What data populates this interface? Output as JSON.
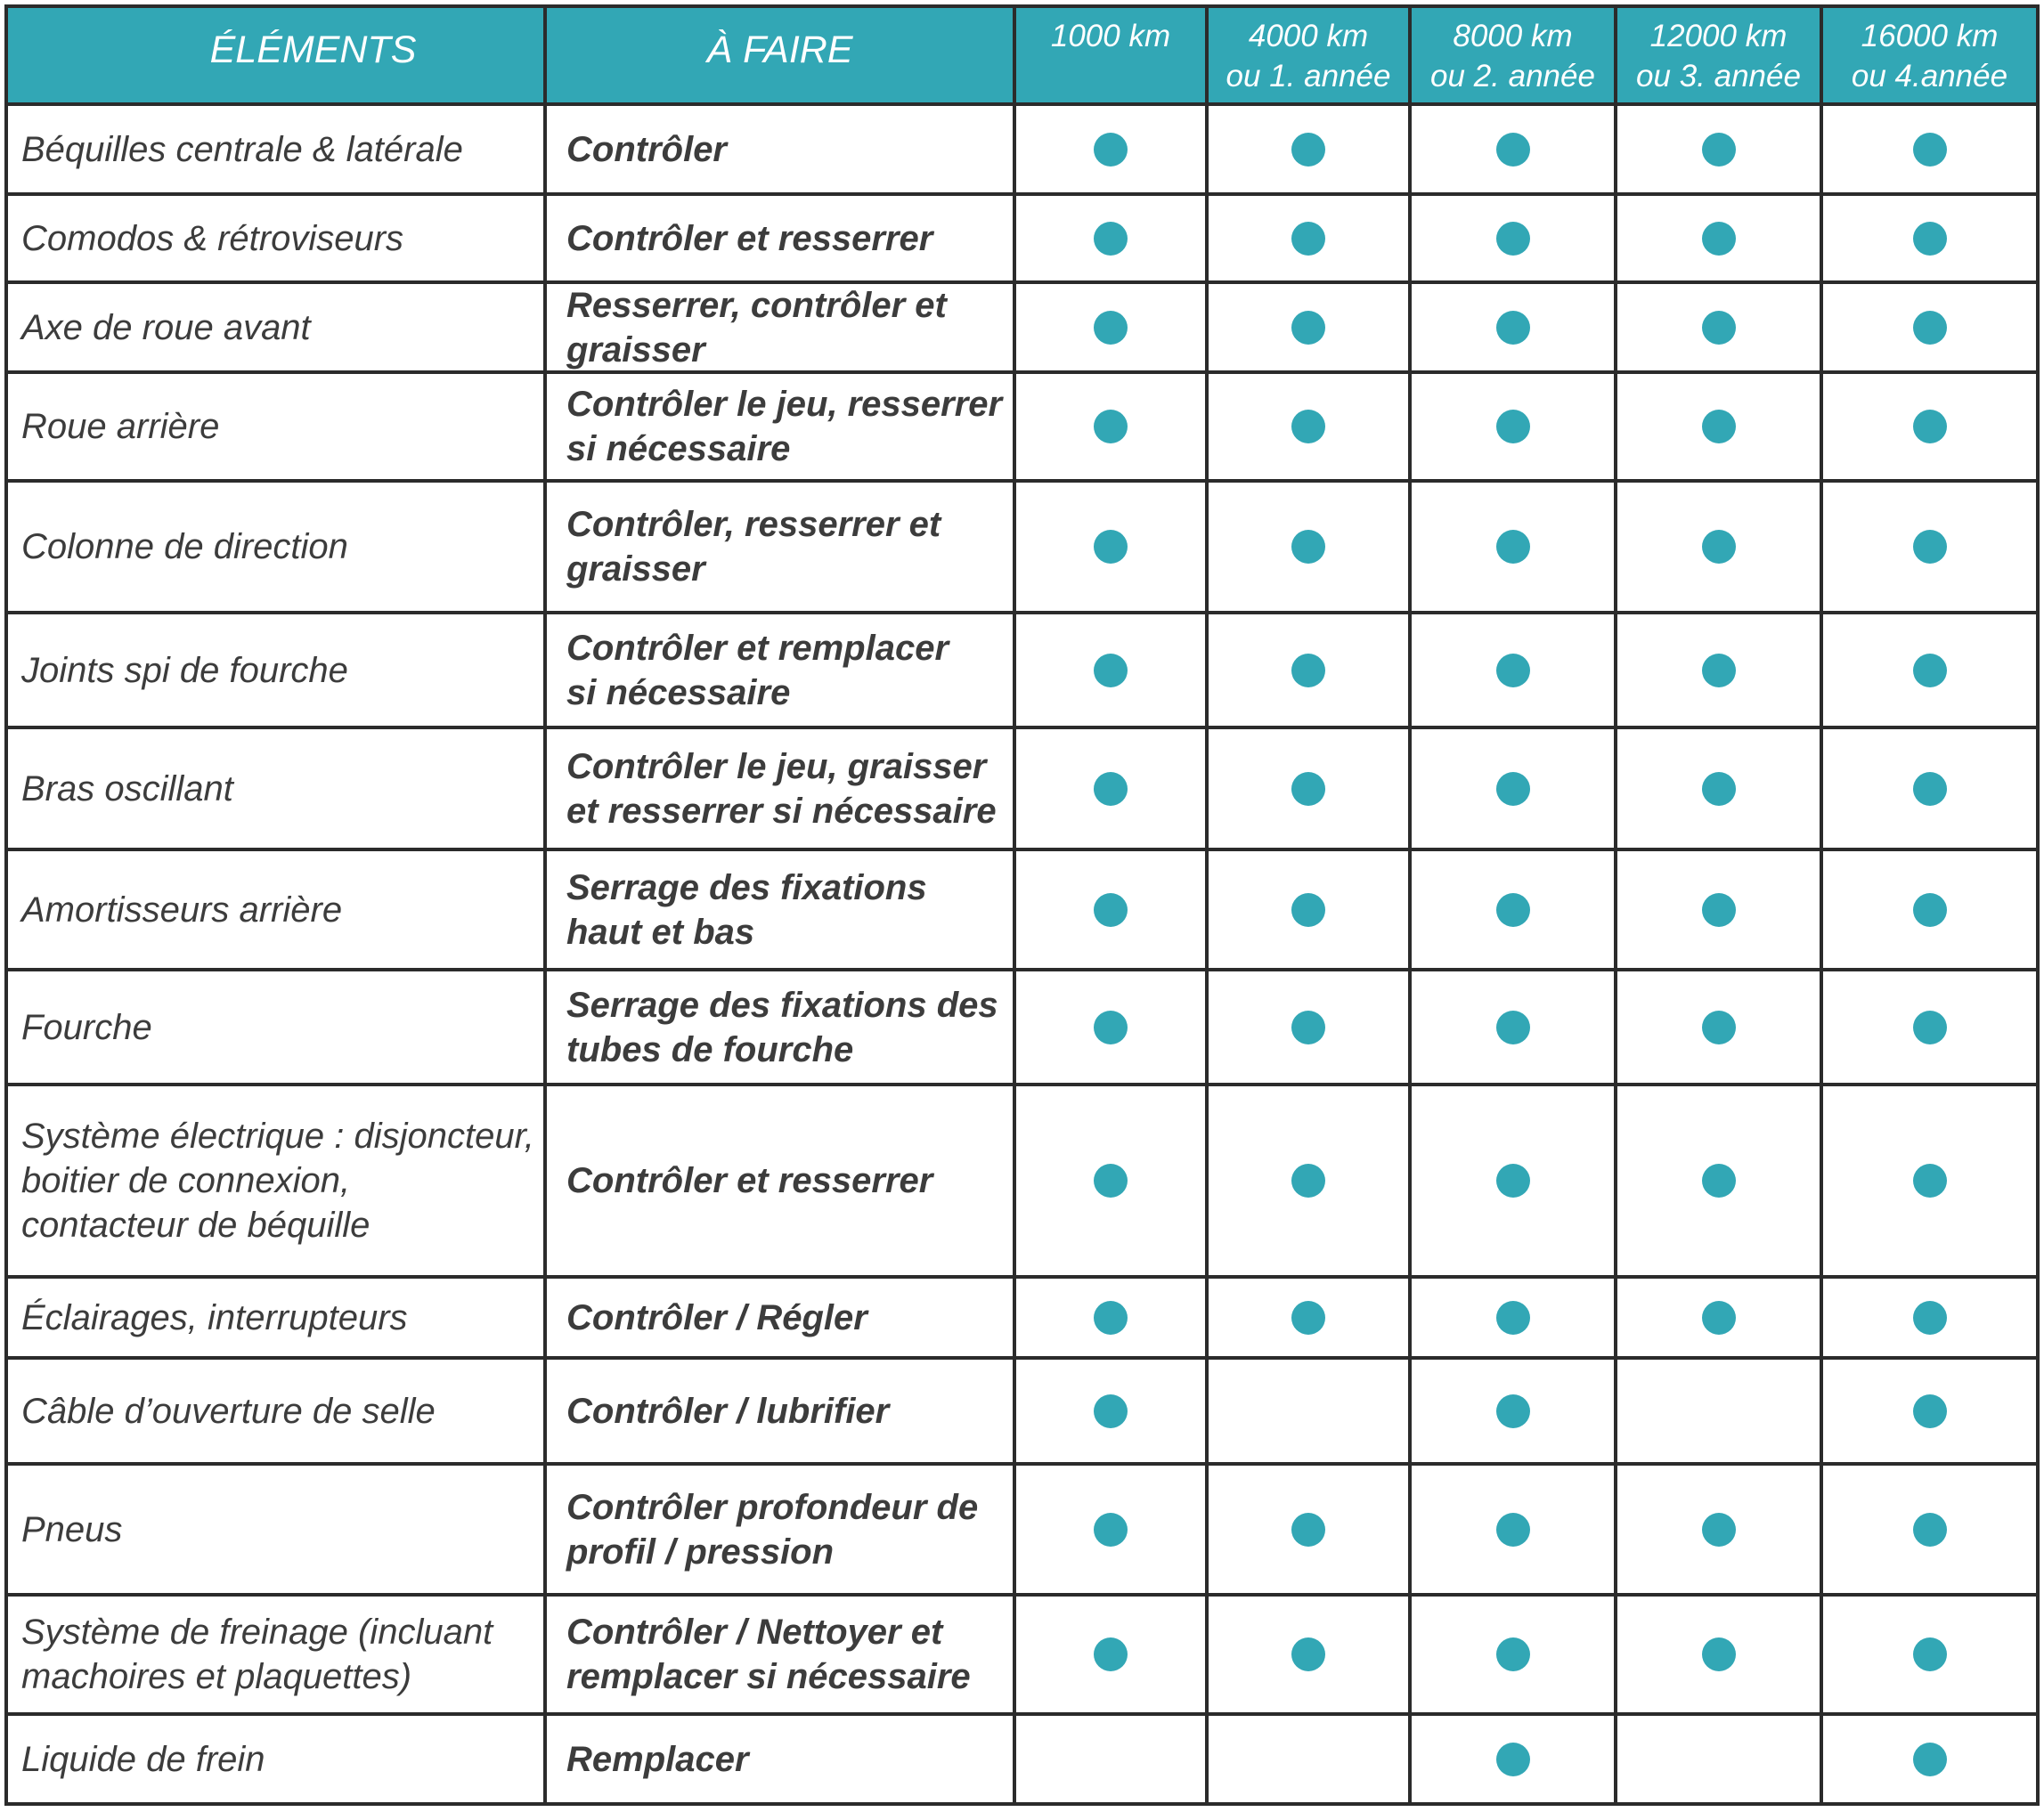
{
  "colors": {
    "teal": "#32a7b5",
    "border": "#2b2b2b",
    "body_text": "#3c3c3c",
    "header_text": "#ffffff",
    "background": "#ffffff"
  },
  "header": {
    "elements_label": "ÉLÉMENTS",
    "todo_label": "À FAIRE",
    "intervals": [
      {
        "km": "1000 km",
        "year": ""
      },
      {
        "km": "4000 km",
        "year": "ou 1. année"
      },
      {
        "km": "8000 km",
        "year": "ou 2. année"
      },
      {
        "km": "12000 km",
        "year": "ou 3. année"
      },
      {
        "km": "16000 km",
        "year": "ou 4.année"
      }
    ]
  },
  "rows": [
    {
      "element": "Béquilles centrale & latérale",
      "todo": "Contrôler",
      "marks": [
        1,
        1,
        1,
        1,
        1
      ]
    },
    {
      "element": "Comodos & rétroviseurs",
      "todo": "Contrôler et resserrer",
      "marks": [
        1,
        1,
        1,
        1,
        1
      ]
    },
    {
      "element": "Axe de roue avant",
      "todo": "Resserrer, contrôler et\ngraisser",
      "marks": [
        1,
        1,
        1,
        1,
        1
      ]
    },
    {
      "element": "Roue arrière",
      "todo": "Contrôler le jeu, resserrer\nsi nécessaire",
      "marks": [
        1,
        1,
        1,
        1,
        1
      ]
    },
    {
      "element": "Colonne de direction",
      "todo": "Contrôler, resserrer et\ngraisser",
      "marks": [
        1,
        1,
        1,
        1,
        1
      ]
    },
    {
      "element": "Joints spi de fourche",
      "todo": "Contrôler et remplacer\nsi nécessaire",
      "marks": [
        1,
        1,
        1,
        1,
        1
      ]
    },
    {
      "element": "Bras oscillant",
      "todo": "Contrôler le jeu, graisser\net resserrer si nécessaire",
      "marks": [
        1,
        1,
        1,
        1,
        1
      ]
    },
    {
      "element": "Amortisseurs arrière",
      "todo": "Serrage des fixations\nhaut et bas",
      "marks": [
        1,
        1,
        1,
        1,
        1
      ]
    },
    {
      "element": "Fourche",
      "todo": "Serrage des fixations des\ntubes de fourche",
      "marks": [
        1,
        1,
        1,
        1,
        1
      ]
    },
    {
      "element": "Système électrique : disjoncteur,\nboitier de connexion,\ncontacteur de béquille",
      "todo": "Contrôler et resserrer",
      "marks": [
        1,
        1,
        1,
        1,
        1
      ]
    },
    {
      "element": "Éclairages, interrupteurs",
      "todo": "Contrôler / Régler",
      "marks": [
        1,
        1,
        1,
        1,
        1
      ]
    },
    {
      "element": "Câble d’ouverture de selle",
      "todo": "Contrôler / lubrifier",
      "marks": [
        1,
        0,
        1,
        0,
        1
      ]
    },
    {
      "element": "Pneus",
      "todo": "Contrôler profondeur de\nprofil / pression",
      "marks": [
        1,
        1,
        1,
        1,
        1
      ]
    },
    {
      "element": "Système de freinage (incluant\nmachoires et plaquettes)",
      "todo": "Contrôler / Nettoyer et\nremplacer si nécessaire",
      "marks": [
        1,
        1,
        1,
        1,
        1
      ]
    },
    {
      "element": "Liquide de frein",
      "todo": "Remplacer",
      "marks": [
        0,
        0,
        1,
        0,
        1
      ]
    }
  ],
  "mark_icon": "filled-circle"
}
